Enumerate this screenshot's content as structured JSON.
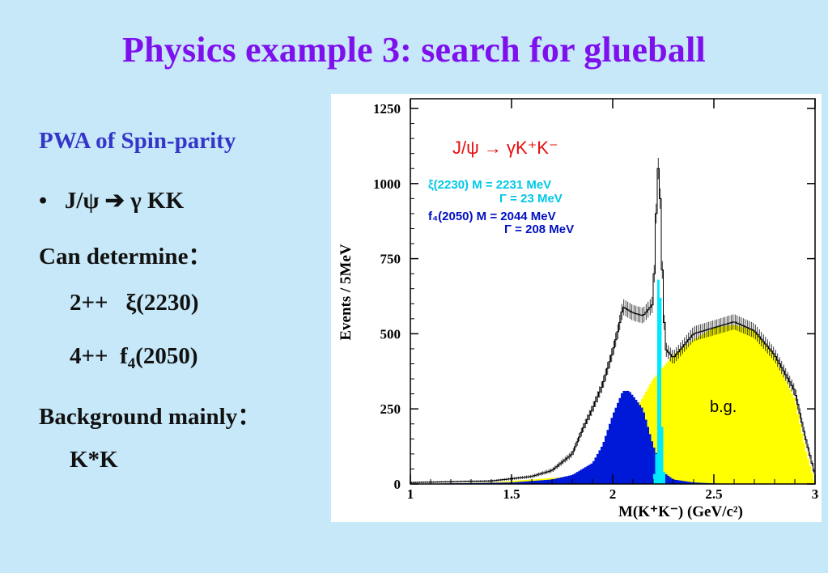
{
  "title": "Physics example 3: search for glueball",
  "left": {
    "pwa_heading": "PWA of Spin-parity",
    "bullet": "•",
    "decay": "J/ψ  ➔  γ KK",
    "can_determine": "Can determine：",
    "state1_jpc": "2++",
    "state1_name": "ξ(2230)",
    "state2_jpc": "4++",
    "state2_f": "f",
    "state2_sub": "4",
    "state2_mass": "(2050)",
    "background_label": "Background mainly：",
    "background_value": "K*K"
  },
  "chart_data": {
    "type": "bar",
    "title": "J/ψ → γK⁺K⁻",
    "xlabel": "M(K⁺K⁻) (GeV/c²)",
    "ylabel": "Events / 5MeV",
    "xlim": [
      1.0,
      3.0
    ],
    "ylim": [
      0,
      1250
    ],
    "xticks": [
      "1",
      "1.5",
      "2",
      "2.5",
      "3"
    ],
    "yticks": [
      "0",
      "250",
      "500",
      "750",
      "1000",
      "1250"
    ],
    "annotations": {
      "xi_line1": "ξ(2230) M = 2231 MeV",
      "xi_line2": "Γ = 23 MeV",
      "f4_line1": "f₄(2050) M = 2044 MeV",
      "f4_line2": "Γ = 208 MeV",
      "bg_label": "b.g."
    },
    "colors": {
      "background": "#ffff00",
      "f4": "#0018d8",
      "xi": "#00e8ff",
      "data": "#000000",
      "title": "#e81010",
      "xi_text": "#00c8e8",
      "f4_text": "#0010c0"
    },
    "series": [
      {
        "name": "b.g.",
        "x": [
          1.0,
          1.2,
          1.4,
          1.6,
          1.8,
          1.9,
          2.0,
          2.1,
          2.2,
          2.3,
          2.4,
          2.5,
          2.6,
          2.7,
          2.8,
          2.9,
          2.95,
          3.0
        ],
        "values": [
          0,
          2,
          5,
          15,
          25,
          40,
          80,
          230,
          350,
          430,
          480,
          520,
          530,
          510,
          420,
          280,
          120,
          0
        ]
      },
      {
        "name": "f4(2050)",
        "x": [
          1.0,
          1.5,
          1.7,
          1.8,
          1.9,
          1.95,
          2.0,
          2.05,
          2.08,
          2.15,
          2.2,
          2.25,
          2.3,
          2.4,
          2.5,
          2.6
        ],
        "values": [
          0,
          5,
          15,
          30,
          70,
          130,
          230,
          310,
          310,
          250,
          130,
          40,
          15,
          5,
          2,
          0
        ]
      },
      {
        "name": "ξ(2230)",
        "x": [
          2.2,
          2.215,
          2.22,
          2.225,
          2.235,
          2.24,
          2.25,
          2.26
        ],
        "values": [
          0,
          100,
          520,
          680,
          620,
          300,
          80,
          0
        ]
      },
      {
        "name": "data",
        "x": [
          1.0,
          1.4,
          1.6,
          1.7,
          1.8,
          1.85,
          1.9,
          1.95,
          2.0,
          2.03,
          2.05,
          2.1,
          2.15,
          2.2,
          2.22,
          2.23,
          2.24,
          2.26,
          2.3,
          2.4,
          2.5,
          2.6,
          2.7,
          2.8,
          2.9,
          2.95,
          3.0
        ],
        "values": [
          5,
          10,
          25,
          45,
          100,
          180,
          250,
          330,
          440,
          520,
          590,
          570,
          560,
          600,
          1000,
          1100,
          800,
          450,
          420,
          500,
          520,
          540,
          510,
          430,
          310,
          160,
          30
        ]
      }
    ]
  }
}
